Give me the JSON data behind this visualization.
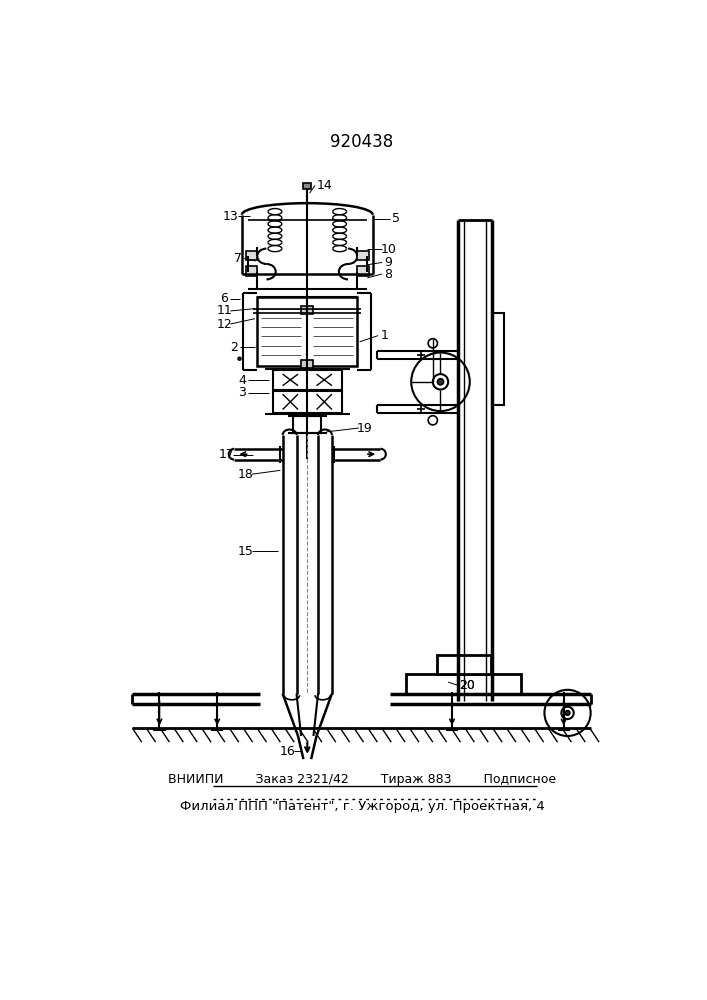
{
  "title": "920438",
  "footer_line1": "ВНИИПИ        Заказ 2321/42        Тираж 883        Подписное",
  "footer_line2": "Филиал ППП \"Патент\", г. Ужгород, ул. Проектная, 4",
  "bg_color": "#ffffff",
  "line_color": "#000000",
  "fig_width": 7.07,
  "fig_height": 10.0
}
